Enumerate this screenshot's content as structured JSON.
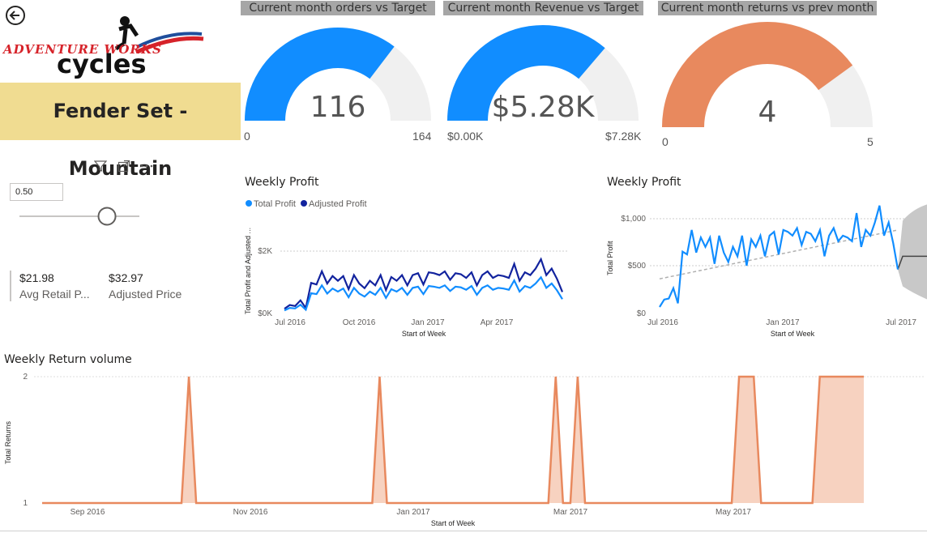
{
  "header": {
    "back_icon": "back-arrow-icon",
    "logo_line1": "ADVENTURE WORKS",
    "logo_line2": "cycles",
    "product": "Fender Set - Mountain"
  },
  "slicer": {
    "icons": [
      "filter-icon",
      "focus-mode-icon",
      "more-options-icon"
    ],
    "value": "0.50",
    "position": 0.5
  },
  "kpis": [
    {
      "value": "$21.98",
      "label": "Avg Retail P..."
    },
    {
      "value": "$32.97",
      "label": "Adjusted Price"
    }
  ],
  "gauges": [
    {
      "title": "Current month orders vs Target",
      "value_label": "116",
      "min_label": "0",
      "max_label": "164",
      "fraction": 0.707,
      "color": "#118dff"
    },
    {
      "title": "Current month Revenue vs Target",
      "value_label": "$5.28K",
      "min_label": "$0.00K",
      "max_label": "$7.28K",
      "fraction": 0.725,
      "color": "#118dff"
    },
    {
      "title": "Current month returns vs prev month",
      "value_label": "4",
      "min_label": "0",
      "max_label": "5",
      "fraction": 0.8,
      "color": "#e8895e"
    }
  ],
  "chart_data": [
    {
      "type": "line",
      "title": "Weekly Profit",
      "xlabel": "Start of Week",
      "ylabel": "Total Profit and Adjusted ...",
      "x_ticks": [
        "Jul 2016",
        "Oct 2016",
        "Jan 2017",
        "Apr 2017"
      ],
      "y_ticks": [
        "$0K",
        "$2K"
      ],
      "ylim": [
        0,
        2800
      ],
      "legend": "top-left",
      "series": [
        {
          "name": "Total Profit",
          "color": "#118dff",
          "values": [
            100,
            180,
            160,
            280,
            120,
            650,
            620,
            900,
            640,
            800,
            700,
            800,
            520,
            820,
            640,
            540,
            700,
            600,
            820,
            500,
            780,
            700,
            820,
            600,
            820,
            860,
            620,
            880,
            860,
            820,
            900,
            720,
            860,
            840,
            760,
            880,
            600,
            820,
            900,
            760,
            820,
            800,
            760,
            1060,
            700,
            880,
            820,
            960,
            1160,
            820,
            960,
            740,
            460
          ]
        },
        {
          "name": "Adjusted Profit",
          "color": "#12239e",
          "values": [
            150,
            270,
            240,
            420,
            180,
            980,
            930,
            1350,
            960,
            1200,
            1050,
            1200,
            780,
            1230,
            960,
            810,
            1050,
            900,
            1230,
            750,
            1170,
            1050,
            1230,
            900,
            1230,
            1290,
            930,
            1320,
            1290,
            1230,
            1350,
            1080,
            1290,
            1260,
            1140,
            1320,
            900,
            1230,
            1350,
            1140,
            1230,
            1200,
            1140,
            1590,
            1050,
            1320,
            1230,
            1440,
            1740,
            1230,
            1440,
            1110,
            690
          ]
        }
      ]
    },
    {
      "type": "line",
      "title": "Weekly Profit",
      "xlabel": "Start of Week",
      "ylabel": "Total Profit",
      "x_ticks": [
        "Jul 2016",
        "Jan 2017",
        "Jul 2017"
      ],
      "y_ticks": [
        "$0",
        "$500",
        "$1,000"
      ],
      "ylim": [
        0,
        1250
      ],
      "series": [
        {
          "name": "Total Profit",
          "color": "#118dff",
          "values": [
            60,
            140,
            150,
            260,
            100,
            650,
            620,
            880,
            640,
            800,
            700,
            800,
            520,
            820,
            640,
            540,
            700,
            600,
            820,
            500,
            780,
            700,
            820,
            600,
            820,
            860,
            620,
            880,
            860,
            820,
            900,
            720,
            860,
            840,
            760,
            880,
            600,
            820,
            900,
            760,
            820,
            800,
            760,
            1060,
            700,
            880,
            820,
            960,
            1140,
            820,
            960,
            740,
            460
          ]
        }
      ],
      "trend": {
        "start": 360,
        "end": 880
      },
      "forecast": {
        "value": 600,
        "lower": 280,
        "upper": 980
      }
    },
    {
      "type": "area",
      "title": "Weekly Return volume",
      "xlabel": "Start of Week",
      "ylabel": "Total Returns",
      "x_ticks": [
        "Sep 2016",
        "Nov 2016",
        "Jan 2017",
        "Mar 2017",
        "May 2017"
      ],
      "y_ticks": [
        "1",
        "2"
      ],
      "ylim": [
        1,
        2
      ],
      "series": [
        {
          "name": "Total Returns",
          "color": "#e8895e",
          "values": [
            1,
            1,
            1,
            1,
            1,
            1,
            1,
            1,
            1,
            1,
            1,
            1,
            1,
            1,
            1,
            1,
            1,
            1,
            1,
            1,
            2,
            1,
            1,
            1,
            1,
            1,
            1,
            1,
            1,
            1,
            1,
            1,
            1,
            1,
            1,
            1,
            1,
            1,
            1,
            1,
            1,
            1,
            1,
            1,
            1,
            1,
            2,
            1,
            1,
            1,
            1,
            1,
            1,
            1,
            1,
            1,
            1,
            1,
            1,
            1,
            1,
            1,
            1,
            1,
            1,
            1,
            1,
            1,
            1,
            1,
            2,
            1,
            1,
            2,
            1,
            1,
            1,
            1,
            1,
            1,
            1,
            1,
            1,
            1,
            1,
            1,
            1,
            1,
            1,
            1,
            1,
            1,
            1,
            1,
            1,
            2,
            2,
            2,
            1,
            1,
            1,
            1,
            1,
            1,
            1,
            1,
            2,
            2,
            2,
            2,
            2,
            2,
            2
          ]
        }
      ]
    }
  ]
}
